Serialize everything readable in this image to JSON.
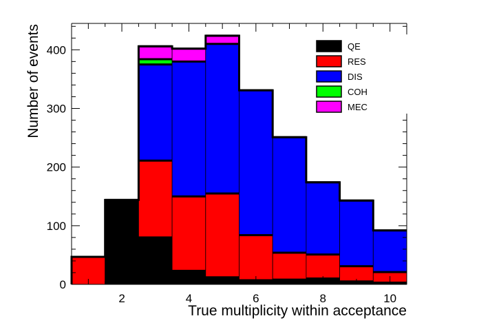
{
  "chart_data": {
    "type": "bar",
    "stacked": true,
    "title": "",
    "xlabel": "True multiplicity within acceptance",
    "ylabel": "Number of events",
    "xlim": [
      0.5,
      10.5
    ],
    "ylim": [
      0,
      445
    ],
    "x_ticks": [
      2,
      4,
      6,
      8,
      10
    ],
    "y_ticks": [
      0,
      100,
      200,
      300,
      400
    ],
    "bin_centers": [
      1,
      2,
      3,
      4,
      5,
      6,
      7,
      8,
      9,
      10
    ],
    "grid": false,
    "legend_position": "top-right",
    "series": [
      {
        "name": "QE",
        "color": "#000000",
        "values": [
          0,
          144,
          80,
          23,
          12,
          7,
          8,
          10,
          5,
          3
        ]
      },
      {
        "name": "RES",
        "color": "#ff0000",
        "values": [
          47,
          0,
          131,
          127,
          143,
          77,
          46,
          41,
          26,
          18
        ]
      },
      {
        "name": "DIS",
        "color": "#0000ff",
        "values": [
          0,
          0,
          164,
          230,
          255,
          247,
          197,
          123,
          112,
          71
        ]
      },
      {
        "name": "COH",
        "color": "#00ff00",
        "values": [
          0,
          0,
          9,
          0,
          0,
          0,
          0,
          0,
          0,
          0
        ]
      },
      {
        "name": "MEC",
        "color": "#ff00ff",
        "values": [
          0,
          0,
          22,
          22,
          14,
          0,
          0,
          0,
          0,
          0
        ]
      }
    ],
    "totals": [
      47,
      144,
      406,
      402,
      424,
      331,
      251,
      174,
      143,
      92
    ]
  }
}
